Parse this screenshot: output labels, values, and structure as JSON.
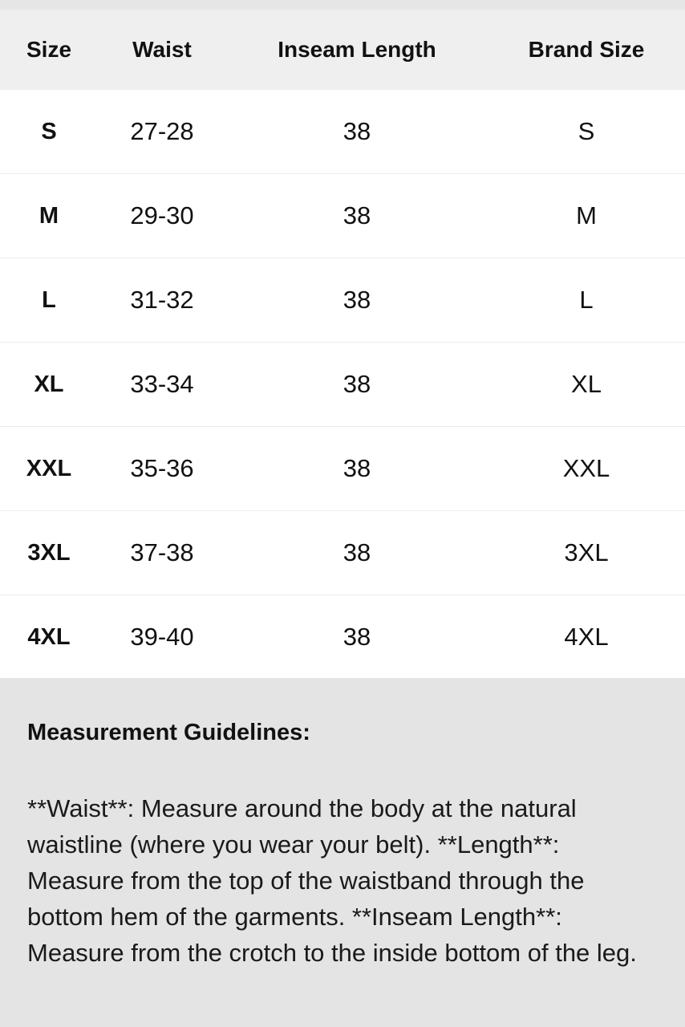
{
  "table": {
    "headers": [
      "Size",
      "Waist",
      "Inseam Length",
      "Brand Size"
    ],
    "rows": [
      [
        "S",
        "27-28",
        "38",
        "S"
      ],
      [
        "M",
        "29-30",
        "38",
        "M"
      ],
      [
        "L",
        "31-32",
        "38",
        "L"
      ],
      [
        "XL",
        "33-34",
        "38",
        "XL"
      ],
      [
        "XXL",
        "35-36",
        "38",
        "XXL"
      ],
      [
        "3XL",
        "37-38",
        "38",
        "3XL"
      ],
      [
        "4XL",
        "39-40",
        "38",
        "4XL"
      ]
    ]
  },
  "guidelines": {
    "title": "Measurement Guidelines:",
    "body": "**Waist**: Measure around the body at the natural waistline (where you wear your belt). **Length**: Measure from the top of the waistband through the bottom hem of the garments. **Inseam Length**: Measure from the crotch to the inside bottom of the leg."
  }
}
